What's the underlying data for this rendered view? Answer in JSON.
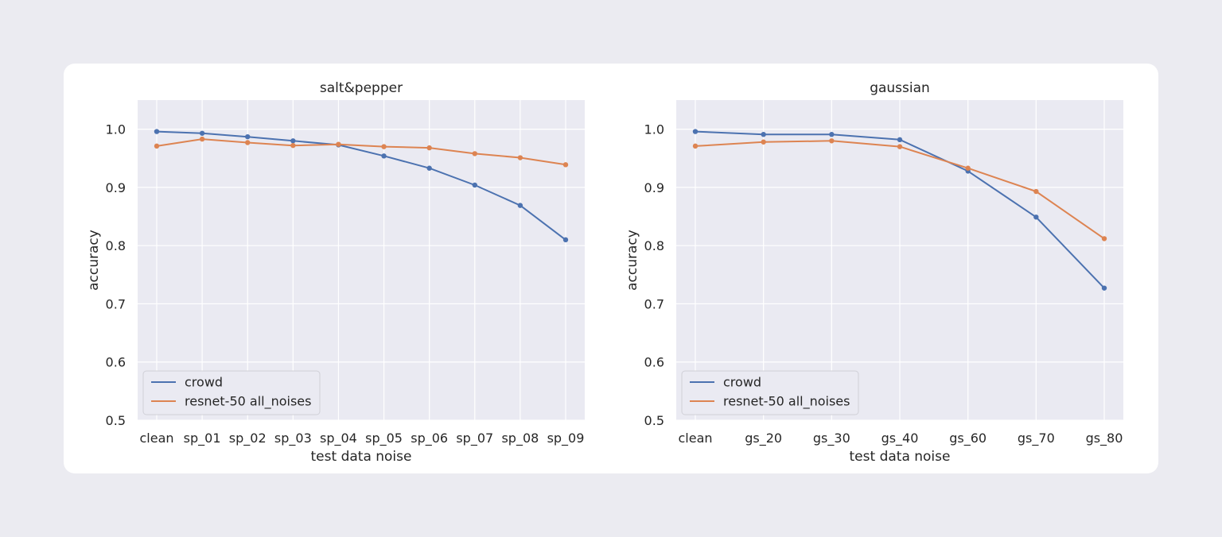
{
  "colors": {
    "page_bg": "#ebebf1",
    "card_bg": "#ffffff",
    "axes_bg": "#eaeaf2",
    "grid": "#ffffff"
  },
  "chart_data": [
    {
      "type": "line",
      "title": "salt&pepper",
      "xlabel": "test data noise",
      "ylabel": "accuracy",
      "ylim": [
        0.5,
        1.05
      ],
      "yticks": [
        "0.5",
        "0.6",
        "0.7",
        "0.8",
        "0.9",
        "1.0"
      ],
      "categories": [
        "clean",
        "sp_01",
        "sp_02",
        "sp_03",
        "sp_04",
        "sp_05",
        "sp_06",
        "sp_07",
        "sp_08",
        "sp_09"
      ],
      "grid": true,
      "legend_position": "lower-left",
      "series": [
        {
          "name": "crowd",
          "color": "#4c72b0",
          "values": [
            0.996,
            0.993,
            0.987,
            0.98,
            0.973,
            0.954,
            0.933,
            0.904,
            0.869,
            0.81
          ]
        },
        {
          "name": "resnet-50 all_noises",
          "color": "#dd8452",
          "values": [
            0.971,
            0.983,
            0.977,
            0.972,
            0.974,
            0.97,
            0.968,
            0.958,
            0.951,
            0.939
          ]
        }
      ]
    },
    {
      "type": "line",
      "title": "gaussian",
      "xlabel": "test data noise",
      "ylabel": "accuracy",
      "ylim": [
        0.5,
        1.05
      ],
      "yticks": [
        "0.5",
        "0.6",
        "0.7",
        "0.8",
        "0.9",
        "1.0"
      ],
      "categories": [
        "clean",
        "gs_20",
        "gs_30",
        "gs_40",
        "gs_60",
        "gs_70",
        "gs_80"
      ],
      "grid": true,
      "legend_position": "lower-left",
      "series": [
        {
          "name": "crowd",
          "color": "#4c72b0",
          "values": [
            0.996,
            0.991,
            0.991,
            0.982,
            0.928,
            0.849,
            0.727
          ]
        },
        {
          "name": "resnet-50 all_noises",
          "color": "#dd8452",
          "values": [
            0.971,
            0.978,
            0.98,
            0.97,
            0.933,
            0.893,
            0.812
          ]
        }
      ]
    }
  ]
}
